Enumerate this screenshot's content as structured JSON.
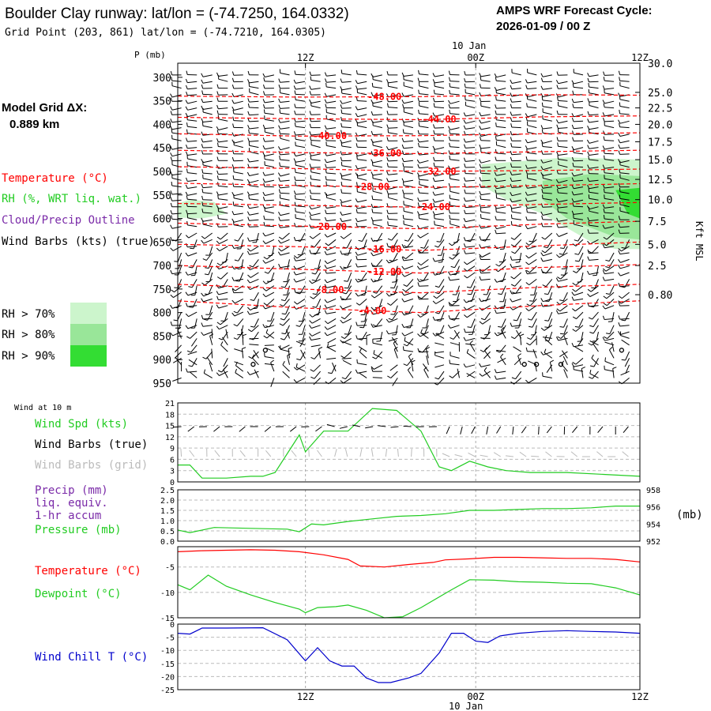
{
  "header": {
    "title": "Boulder Clay runway:  lat/lon = (-74.7250, 164.0332)",
    "subtitle": "Grid Point (203, 861) lat/lon = (-74.7210, 164.0305)",
    "cycle_label": "AMPS WRF Forecast Cycle:",
    "cycle_value": "2026-01-09 / 00  Z",
    "date_top": "10 Jan",
    "date_bottom": "10 Jan"
  },
  "colors": {
    "red": "#ff0000",
    "green": "#22cc22",
    "purple": "#7a2aa8",
    "blue": "#0000cc",
    "gray": "#bbbbbb",
    "rh70": "#ccf5cc",
    "rh80": "#99e699",
    "rh90": "#33dd33"
  },
  "left_panel": {
    "grid_label": "Model Grid ΔX:",
    "grid_value": "0.889 km",
    "legend_temperature": "Temperature (°C)",
    "legend_rh": "RH (%, WRT liq. wat.)",
    "legend_cloud": "Cloud/Precip Outline",
    "legend_wind": "Wind Barbs (kts) (true)",
    "rh70": "RH > 70%",
    "rh80": "RH > 80%",
    "rh90": "RH > 90%"
  },
  "lower_labels": {
    "wind_10m": "Wind at 10 m",
    "wind_spd": "Wind Spd (kts)",
    "barbs_true": "Wind Barbs (true)",
    "barbs_grid": "Wind Barbs (grid)",
    "precip": "Precip (mm)",
    "liq": "liq. equiv.",
    "accum": "1-hr accum",
    "pressure": "Pressure (mb)",
    "pressure_unit": "(mb)",
    "temperature": "Temperature (°C)",
    "dewpoint": "Dewpoint (°C)",
    "windchill": "Wind Chill T (°C)"
  },
  "chart_data": [
    {
      "type": "line",
      "name": "upper-air time-height section",
      "ylabel": "P (mb)",
      "right_label": "Kft MSL",
      "x_ticks": [
        "12Z",
        "00Z",
        "12Z"
      ],
      "x_range_hours": [
        0,
        38
      ],
      "x_tick_hours": [
        10.5,
        24.5,
        38
      ],
      "p_ticks": [
        300,
        350,
        400,
        450,
        500,
        550,
        600,
        650,
        700,
        750,
        800,
        850,
        900,
        950
      ],
      "p_range": [
        950,
        270
      ],
      "kft_ticks": [
        {
          "p": 270,
          "label": "30.0"
        },
        {
          "p": 332,
          "label": "25.0"
        },
        {
          "p": 365,
          "label": "22.5"
        },
        {
          "p": 400,
          "label": "20.0"
        },
        {
          "p": 437,
          "label": "17.5"
        },
        {
          "p": 475,
          "label": "15.0"
        },
        {
          "p": 517,
          "label": "12.5"
        },
        {
          "p": 560,
          "label": "10.0"
        },
        {
          "p": 606,
          "label": "7.5"
        },
        {
          "p": 655,
          "label": "5.0"
        },
        {
          "p": 700,
          "label": "2.5"
        },
        {
          "p": 762,
          "label": "0.80"
        }
      ],
      "isotherms": [
        {
          "label": "-48.00",
          "label_h": 17,
          "pts": [
            [
              0,
              340
            ],
            [
              10,
              342
            ],
            [
              20,
              341
            ],
            [
              30,
              337
            ],
            [
              38,
              338
            ]
          ]
        },
        {
          "label": "-44.00",
          "label_h": 21.5,
          "pts": [
            [
              0,
              385
            ],
            [
              10,
              388
            ],
            [
              20,
              390
            ],
            [
              30,
              384
            ],
            [
              38,
              382
            ]
          ]
        },
        {
          "label": "-40.00",
          "label_h": 12.5,
          "pts": [
            [
              0,
              420
            ],
            [
              10,
              425
            ],
            [
              20,
              424
            ],
            [
              30,
              420
            ],
            [
              38,
              418
            ]
          ]
        },
        {
          "label": "-36.00",
          "label_h": 17,
          "pts": [
            [
              0,
              455
            ],
            [
              10,
              460
            ],
            [
              20,
              462
            ],
            [
              30,
              458
            ],
            [
              38,
              455
            ]
          ]
        },
        {
          "label": "-32.00",
          "label_h": 21.5,
          "pts": [
            [
              0,
              490
            ],
            [
              10,
              494
            ],
            [
              20,
              500
            ],
            [
              30,
              498
            ],
            [
              38,
              495
            ]
          ]
        },
        {
          "label": "-28.00",
          "label_h": 16,
          "pts": [
            [
              0,
              525
            ],
            [
              10,
              530
            ],
            [
              20,
              534
            ],
            [
              30,
              530
            ],
            [
              38,
              526
            ]
          ]
        },
        {
          "label": "-24.00",
          "label_h": 21,
          "pts": [
            [
              0,
              568
            ],
            [
              10,
              572
            ],
            [
              20,
              576
            ],
            [
              30,
              570
            ],
            [
              38,
              566
            ]
          ]
        },
        {
          "label": "-20.00",
          "label_h": 12.5,
          "pts": [
            [
              0,
              610
            ],
            [
              10,
              616
            ],
            [
              20,
              622
            ],
            [
              30,
              612
            ],
            [
              38,
              606
            ]
          ]
        },
        {
          "label": "-16.00",
          "label_h": 17,
          "pts": [
            [
              0,
              655
            ],
            [
              10,
              660
            ],
            [
              20,
              668
            ],
            [
              30,
              658
            ],
            [
              38,
              650
            ]
          ]
        },
        {
          "label": "-12.00",
          "label_h": 17,
          "pts": [
            [
              0,
              700
            ],
            [
              10,
              708
            ],
            [
              20,
              716
            ],
            [
              30,
              704
            ],
            [
              38,
              698
            ]
          ]
        },
        {
          "label": "-8.00",
          "label_h": 12.5,
          "pts": [
            [
              0,
              740
            ],
            [
              10,
              750
            ],
            [
              20,
              758
            ],
            [
              30,
              746
            ],
            [
              38,
              740
            ]
          ]
        },
        {
          "label": "-4.00",
          "label_h": 16,
          "pts": [
            [
              0,
              775
            ],
            [
              10,
              790
            ],
            [
              20,
              800
            ],
            [
              30,
              785
            ],
            [
              38,
              775
            ]
          ]
        }
      ],
      "rh_regions": [
        {
          "level": "rh70",
          "pts": [
            [
              0,
              568
            ],
            [
              1,
              560
            ],
            [
              3,
              565
            ],
            [
              4,
              590
            ],
            [
              2,
              600
            ],
            [
              0,
              598
            ]
          ]
        },
        {
          "level": "rh70",
          "pts": [
            [
              25,
              485
            ],
            [
              32,
              470
            ],
            [
              38,
              475
            ],
            [
              38,
              665
            ],
            [
              36,
              665
            ],
            [
              34,
              650
            ],
            [
              32,
              620
            ],
            [
              30,
              590
            ],
            [
              27,
              560
            ],
            [
              25,
              530
            ]
          ]
        },
        {
          "level": "rh80",
          "pts": [
            [
              30,
              520
            ],
            [
              34,
              505
            ],
            [
              38,
              510
            ],
            [
              38,
              645
            ],
            [
              36,
              640
            ],
            [
              34,
              620
            ],
            [
              32,
              600
            ],
            [
              30,
              560
            ]
          ]
        },
        {
          "level": "rh90",
          "pts": [
            [
              36,
              540
            ],
            [
              38,
              535
            ],
            [
              38,
              600
            ],
            [
              37,
              590
            ]
          ]
        }
      ],
      "wind_barbs": "grid of barbs from mostly southerly/westerly directions, 5-25 kts"
    },
    {
      "type": "line",
      "name": "10 m wind speed",
      "x_range_hours": [
        0,
        38
      ],
      "y_range": [
        0,
        21
      ],
      "y_ticks": [
        0,
        3,
        6,
        9,
        12,
        15,
        18,
        21
      ],
      "series": [
        {
          "name": "Wind Spd (kts)",
          "points": [
            [
              0,
              4.5
            ],
            [
              1,
              4.5
            ],
            [
              2,
              1
            ],
            [
              4,
              1
            ],
            [
              6,
              1.5
            ],
            [
              7,
              1.5
            ],
            [
              8,
              2.5
            ],
            [
              10,
              12.5
            ],
            [
              10.5,
              8
            ],
            [
              12,
              13.5
            ],
            [
              14,
              13.5
            ],
            [
              16,
              19.5
            ],
            [
              18,
              19
            ],
            [
              20,
              13.5
            ],
            [
              21.5,
              4
            ],
            [
              22.5,
              3
            ],
            [
              24,
              5.5
            ],
            [
              25.5,
              4
            ],
            [
              27,
              3
            ],
            [
              29,
              2.5
            ],
            [
              32,
              2.5
            ],
            [
              35,
              2
            ],
            [
              38,
              1.5
            ]
          ]
        }
      ]
    },
    {
      "type": "line",
      "name": "precip and pressure",
      "x_range_hours": [
        0,
        38
      ],
      "y_range": [
        0,
        2.5
      ],
      "y_ticks": [
        0.0,
        0.5,
        1.0,
        1.5,
        2.0,
        2.5
      ],
      "y2_range": [
        952,
        958
      ],
      "y2_ticks": [
        952,
        954,
        956,
        958
      ],
      "series": [
        {
          "name": "Pressure (mb)",
          "axis": "right",
          "points": [
            [
              0,
              953.3
            ],
            [
              1,
              953.0
            ],
            [
              3,
              953.6
            ],
            [
              6,
              953.5
            ],
            [
              9,
              953.4
            ],
            [
              10,
              953.1
            ],
            [
              11,
              954.0
            ],
            [
              12,
              953.9
            ],
            [
              14,
              954.3
            ],
            [
              16,
              954.6
            ],
            [
              18,
              954.9
            ],
            [
              20,
              955.0
            ],
            [
              22,
              955.2
            ],
            [
              24,
              955.6
            ],
            [
              26,
              955.6
            ],
            [
              28,
              955.7
            ],
            [
              30,
              955.8
            ],
            [
              32,
              955.8
            ],
            [
              34,
              955.9
            ],
            [
              36,
              956.1
            ],
            [
              38,
              956.1
            ]
          ]
        },
        {
          "name": "Precip (mm)",
          "axis": "left",
          "points": []
        }
      ]
    },
    {
      "type": "line",
      "name": "temperature and dewpoint",
      "x_range_hours": [
        0,
        38
      ],
      "y_range": [
        -15,
        -1
      ],
      "y_ticks": [
        -15,
        -10,
        -5
      ],
      "series": [
        {
          "name": "Temperature (°C)",
          "points": [
            [
              0,
              -2.0
            ],
            [
              2,
              -1.8
            ],
            [
              4,
              -1.7
            ],
            [
              6,
              -1.6
            ],
            [
              8,
              -1.7
            ],
            [
              10,
              -2.0
            ],
            [
              12,
              -2.6
            ],
            [
              14,
              -3.5
            ],
            [
              15,
              -4.8
            ],
            [
              17,
              -5.0
            ],
            [
              19,
              -4.5
            ],
            [
              21,
              -4.1
            ],
            [
              22,
              -3.6
            ],
            [
              24,
              -3.4
            ],
            [
              26,
              -3.1
            ],
            [
              28,
              -3.1
            ],
            [
              30,
              -3.2
            ],
            [
              32,
              -3.3
            ],
            [
              34,
              -3.3
            ],
            [
              36,
              -3.5
            ],
            [
              38,
              -4.0
            ]
          ]
        },
        {
          "name": "Dewpoint (°C)",
          "points": [
            [
              0,
              -8.5
            ],
            [
              1,
              -9.5
            ],
            [
              2.5,
              -6.6
            ],
            [
              4,
              -8.8
            ],
            [
              6,
              -10.5
            ],
            [
              8,
              -12.0
            ],
            [
              10,
              -13.3
            ],
            [
              10.5,
              -14.0
            ],
            [
              11.5,
              -13.0
            ],
            [
              13,
              -12.8
            ],
            [
              14,
              -12.5
            ],
            [
              15.5,
              -13.5
            ],
            [
              17,
              -15.0
            ],
            [
              18.5,
              -14.8
            ],
            [
              20,
              -13.0
            ],
            [
              22.5,
              -9.5
            ],
            [
              24,
              -7.5
            ],
            [
              26,
              -7.6
            ],
            [
              28,
              -7.9
            ],
            [
              30,
              -8.0
            ],
            [
              32,
              -8.2
            ],
            [
              34,
              -8.3
            ],
            [
              36,
              -9.1
            ],
            [
              38,
              -10.5
            ]
          ]
        }
      ]
    },
    {
      "type": "line",
      "name": "wind chill",
      "x_range_hours": [
        0,
        38
      ],
      "y_range": [
        -25,
        0
      ],
      "y_ticks": [
        -25,
        -20,
        -15,
        -10,
        -5,
        0
      ],
      "series": [
        {
          "name": "Wind Chill T (°C)",
          "points": [
            [
              0,
              -3.5
            ],
            [
              1,
              -3.8
            ],
            [
              2,
              -1.5
            ],
            [
              4,
              -1.5
            ],
            [
              7,
              -1.4
            ],
            [
              9,
              -6.0
            ],
            [
              10.5,
              -14.0
            ],
            [
              11.5,
              -9.0
            ],
            [
              12.5,
              -14.0
            ],
            [
              13.5,
              -16.0
            ],
            [
              14.5,
              -16.0
            ],
            [
              15.5,
              -20.5
            ],
            [
              16.5,
              -22.3
            ],
            [
              17.5,
              -22.3
            ],
            [
              19,
              -20.5
            ],
            [
              20,
              -18.8
            ],
            [
              21.5,
              -11.0
            ],
            [
              22.5,
              -3.5
            ],
            [
              23.5,
              -3.5
            ],
            [
              24.5,
              -6.5
            ],
            [
              25.5,
              -7.0
            ],
            [
              26.5,
              -4.5
            ],
            [
              28,
              -3.5
            ],
            [
              30,
              -2.8
            ],
            [
              32,
              -2.5
            ],
            [
              34,
              -2.8
            ],
            [
              36,
              -3.0
            ],
            [
              38,
              -3.5
            ]
          ]
        }
      ]
    }
  ]
}
